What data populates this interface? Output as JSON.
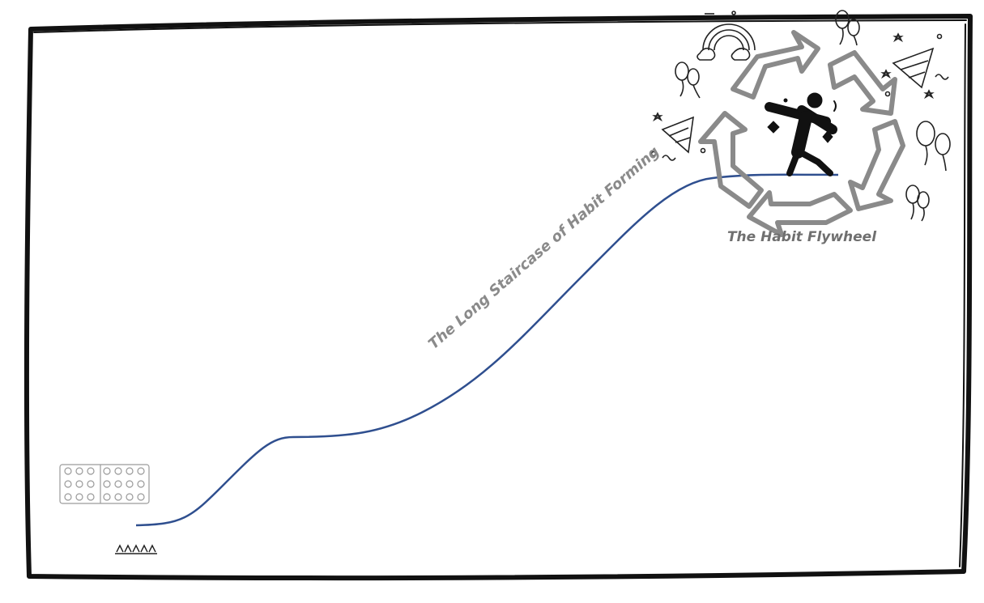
{
  "labels": {
    "flywheel": "The Habit Flywheel",
    "staircase": "The Long Staircase of Habit Forming"
  },
  "colors": {
    "curve": "#2f4f8f",
    "flywheel_arrows": "#8a8a8a",
    "frame": "#111111",
    "icons": "#222222"
  },
  "icons": [
    "crowd-icon",
    "small-people-icon",
    "rainbow-icon",
    "balloons-icon",
    "party-hat-icon",
    "dabbing-person-icon",
    "sparkle-icon"
  ]
}
